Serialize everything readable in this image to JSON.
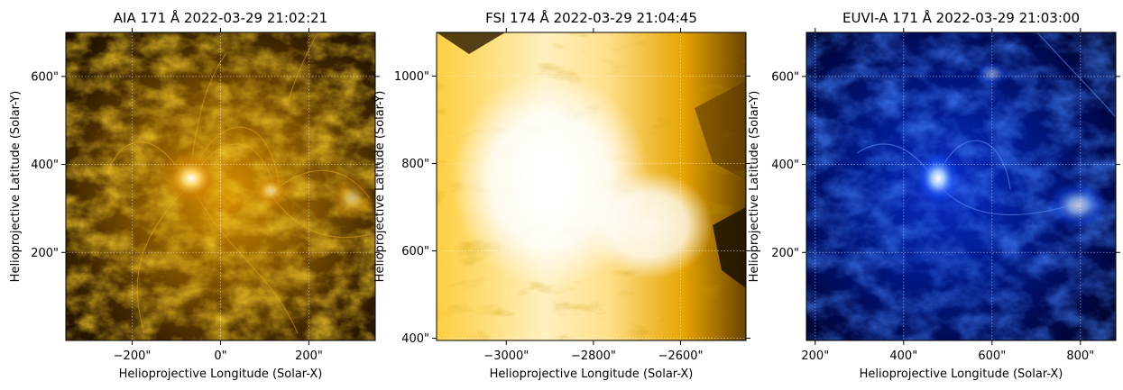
{
  "chart_data": [
    {
      "type": "image",
      "title": "AIA 171 Å 2022-03-29 21:02:21",
      "xlabel": "Helioprojective Longitude (Solar-X)",
      "ylabel": "Helioprojective Latitude (Solar-Y)",
      "xlim": [
        -350,
        350
      ],
      "ylim": [
        0,
        700
      ],
      "x_ticks": [
        {
          "value": -200,
          "label": "−200\""
        },
        {
          "value": 0,
          "label": "0\""
        },
        {
          "value": 200,
          "label": "200\""
        }
      ],
      "y_ticks": [
        {
          "value": 200,
          "label": "200\""
        },
        {
          "value": 400,
          "label": "400\""
        },
        {
          "value": 600,
          "label": "600\""
        }
      ],
      "colormap": [
        "#000000",
        "#3a2200",
        "#8a5a00",
        "#d99000",
        "#ffc43a",
        "#ffffff"
      ],
      "grid": true
    },
    {
      "type": "image",
      "title": "FSI 174 Å 2022-03-29 21:04:45",
      "xlabel": "Helioprojective Longitude (Solar-X)",
      "ylabel": "Helioprojective Latitude (Solar-Y)",
      "xlim": [
        -3160,
        -2450
      ],
      "ylim": [
        395,
        1100
      ],
      "x_ticks": [
        {
          "value": -3000,
          "label": "−3000\""
        },
        {
          "value": -2800,
          "label": "−2800\""
        },
        {
          "value": -2600,
          "label": "−2600\""
        }
      ],
      "y_ticks": [
        {
          "value": 400,
          "label": "400\""
        },
        {
          "value": 600,
          "label": "600\""
        },
        {
          "value": 800,
          "label": "800\""
        },
        {
          "value": 1000,
          "label": "1000\""
        }
      ],
      "colormap": [
        "#000000",
        "#6a4300",
        "#e0a000",
        "#ffd24a",
        "#fff3c8",
        "#ffffff"
      ],
      "grid": true
    },
    {
      "type": "image",
      "title": "EUVI-A 171 Å 2022-03-29 21:03:00",
      "xlabel": "Helioprojective Longitude (Solar-X)",
      "ylabel": "Helioprojective Latitude (Solar-Y)",
      "xlim": [
        180,
        880
      ],
      "ylim": [
        0,
        700
      ],
      "x_ticks": [
        {
          "value": 200,
          "label": "200\""
        },
        {
          "value": 400,
          "label": "400\""
        },
        {
          "value": 600,
          "label": "600\""
        },
        {
          "value": 800,
          "label": "800\""
        }
      ],
      "y_ticks": [
        {
          "value": 200,
          "label": "200\""
        },
        {
          "value": 400,
          "label": "400\""
        },
        {
          "value": 600,
          "label": "600\""
        }
      ],
      "colormap": [
        "#000000",
        "#00003a",
        "#00109a",
        "#1a55ff",
        "#8ab8ff",
        "#ffffff"
      ],
      "grid": true
    }
  ]
}
